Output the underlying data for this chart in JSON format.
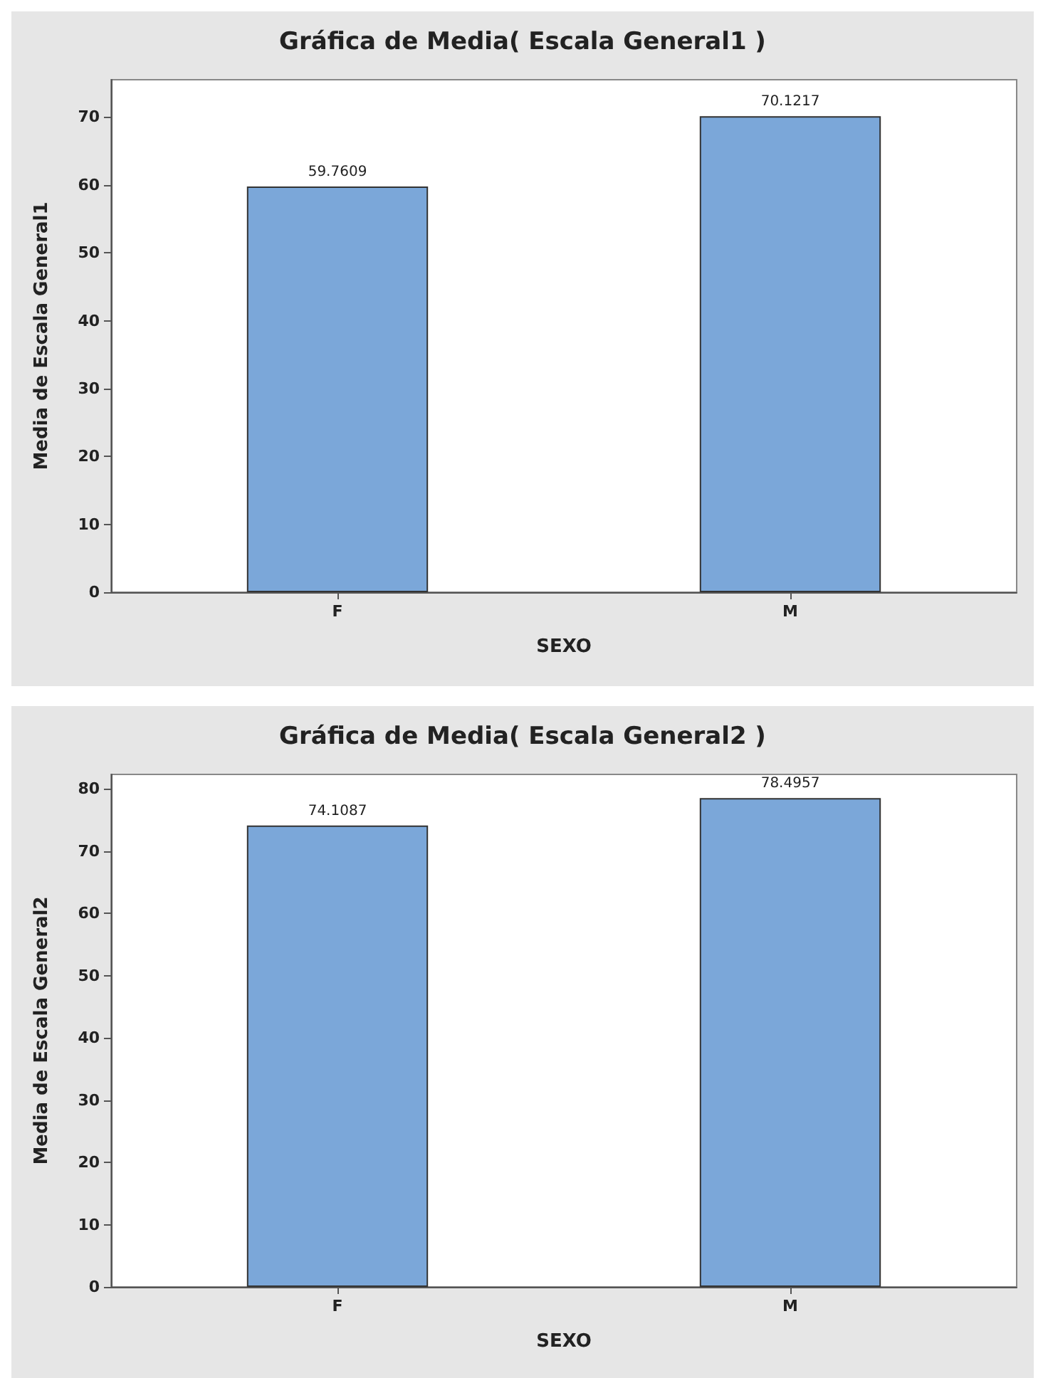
{
  "chart_data": [
    {
      "type": "bar",
      "title": "Gráfica de Media( Escala General1 )",
      "xlabel": "SEXO",
      "ylabel": "Media de Escala General1",
      "categories": [
        "F",
        "M"
      ],
      "values": [
        59.7609,
        70.1217
      ],
      "color": "#7ba7d9",
      "ylim": [
        0,
        75.5
      ],
      "yticks": [
        0,
        10,
        20,
        30,
        40,
        50,
        60,
        70
      ],
      "data_labels": true,
      "grid": false
    },
    {
      "type": "bar",
      "title": "Gráfica de Media( Escala General2 )",
      "xlabel": "SEXO",
      "ylabel": "Media de Escala General2",
      "categories": [
        "F",
        "M"
      ],
      "values": [
        74.1087,
        78.4957
      ],
      "color": "#7ba7d9",
      "ylim": [
        0,
        82.3
      ],
      "yticks": [
        0,
        10,
        20,
        30,
        40,
        50,
        60,
        70,
        80
      ],
      "data_labels": true,
      "grid": false
    }
  ]
}
